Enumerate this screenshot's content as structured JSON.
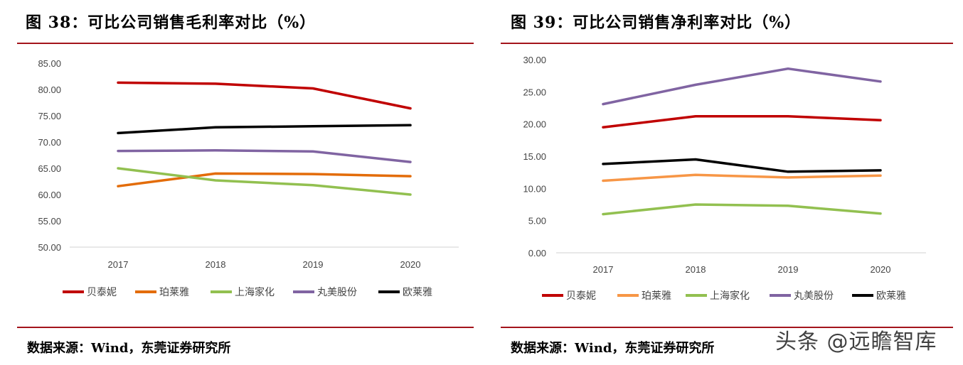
{
  "left": {
    "title": "图 38：可比公司销售毛利率对比（%）",
    "source": "数据来源：Wind，东莞证券研究所"
  },
  "right": {
    "title": "图 39：可比公司销售净利率对比（%）",
    "source": "数据来源：Wind，东莞证券研究所"
  },
  "watermark": "头条 @远瞻智库",
  "colors": {
    "rule": "#a3141b"
  },
  "chart_data": [
    {
      "type": "line",
      "title": "",
      "categories": [
        "2017",
        "2018",
        "2019",
        "2020"
      ],
      "ylim": [
        50,
        85
      ],
      "yticks": [
        "85.00",
        "80.00",
        "75.00",
        "70.00",
        "65.00",
        "60.00",
        "55.00",
        "50.00"
      ],
      "grid": false,
      "legend_position": "bottom",
      "series": [
        {
          "name": "贝泰妮",
          "color": "#c00000",
          "values": [
            81.3,
            81.1,
            80.2,
            76.4
          ]
        },
        {
          "name": "珀莱雅",
          "color": "#e36c09",
          "values": [
            61.6,
            64.0,
            63.9,
            63.5
          ]
        },
        {
          "name": "上海家化",
          "color": "#92c050",
          "values": [
            65.0,
            62.7,
            61.8,
            60.0
          ]
        },
        {
          "name": "丸美股份",
          "color": "#8064a2",
          "values": [
            68.3,
            68.4,
            68.2,
            66.2
          ]
        },
        {
          "name": "欧莱雅",
          "color": "#000000",
          "values": [
            71.7,
            72.8,
            73.0,
            73.2
          ]
        }
      ]
    },
    {
      "type": "line",
      "title": "",
      "categories": [
        "2017",
        "2018",
        "2019",
        "2020"
      ],
      "ylim": [
        0,
        30
      ],
      "yticks": [
        "30.00",
        "25.00",
        "20.00",
        "15.00",
        "10.00",
        "5.00",
        "0.00"
      ],
      "grid": false,
      "legend_position": "bottom",
      "series": [
        {
          "name": "贝泰妮",
          "color": "#c00000",
          "values": [
            19.5,
            21.2,
            21.2,
            20.6
          ]
        },
        {
          "name": "珀莱雅",
          "color": "#f79646",
          "values": [
            11.2,
            12.1,
            11.7,
            12.0
          ]
        },
        {
          "name": "上海家化",
          "color": "#92c050",
          "values": [
            6.0,
            7.5,
            7.3,
            6.1
          ]
        },
        {
          "name": "丸美股份",
          "color": "#8064a2",
          "values": [
            23.1,
            26.1,
            28.6,
            26.6
          ]
        },
        {
          "name": "欧莱雅",
          "color": "#000000",
          "values": [
            13.8,
            14.5,
            12.6,
            12.8
          ]
        }
      ]
    }
  ]
}
